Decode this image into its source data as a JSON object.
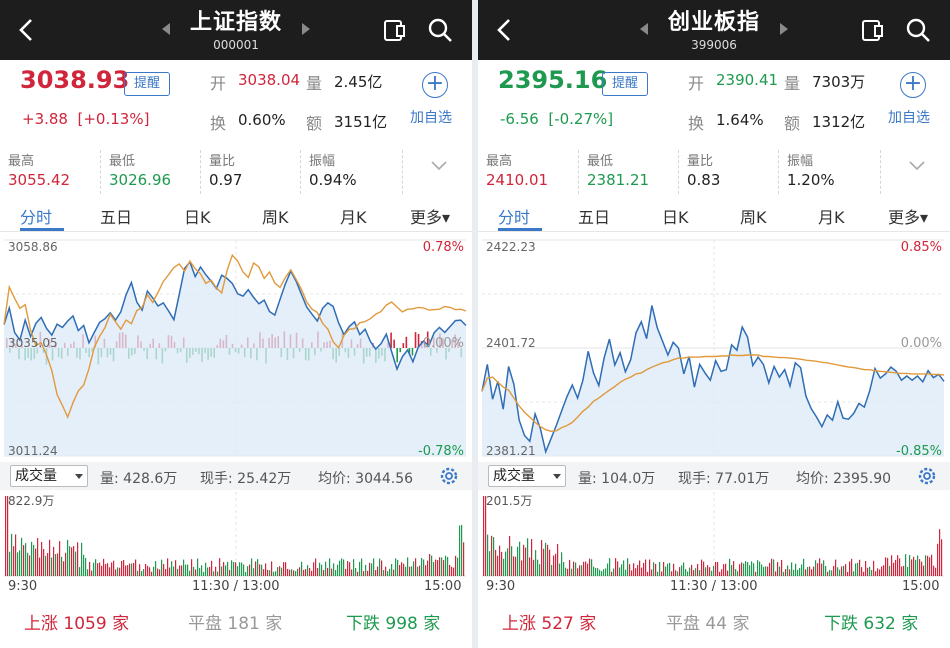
{
  "panels": [
    {
      "title": "上证指数",
      "code": "000001",
      "price": "3038.93",
      "remind_label": "提醒",
      "change": "+3.88",
      "change_pct": "[+0.13%]",
      "open_label": "开",
      "open": "3038.04",
      "vol_label": "量",
      "vol": "2.45亿",
      "turnover_label": "换",
      "turnover": "0.60%",
      "amount_label": "额",
      "amount": "3151亿",
      "add_label": "加自选",
      "stats": [
        {
          "label": "最高",
          "value": "3055.42"
        },
        {
          "label": "最低",
          "value": "3026.96"
        },
        {
          "label": "量比",
          "value": "0.97"
        },
        {
          "label": "振幅",
          "value": "0.94%"
        }
      ],
      "tabs": [
        "分时",
        "五日",
        "日K",
        "周K",
        "月K",
        "更多▾"
      ],
      "axis": {
        "top": "3058.86",
        "mid": "3035.05",
        "bottom": "3011.24",
        "top_pct": "0.78%",
        "mid_pct": "0.00%",
        "bottom_pct": "-0.78%"
      },
      "vol_selector": "成交量",
      "vol_info": {
        "qty": "量: 428.6万",
        "hand": "现手: 25.42万",
        "avg": "均价: 3044.56"
      },
      "vol_max": "822.9万",
      "times": [
        "9:30",
        "11:30 / 13:00",
        "15:00"
      ],
      "breadth": {
        "up": "上涨 1059 家",
        "flat": "平盘 181 家",
        "down": "下跌 998 家"
      },
      "chart_data": {
        "type": "line",
        "ylim": [
          3011.24,
          3058.86
        ],
        "series": [
          {
            "values": [
              3040.2,
              3043.9,
              3038.5,
              3036.8,
              3041.2,
              3037.6,
              3040.5,
              3041.8,
              3039.4,
              3037.9,
              3040.3,
              3039.6,
              3041.0,
              3042.1,
              3038.9,
              3040.0,
              3036.2,
              3038.5,
              3040.7,
              3041.5,
              3042.8,
              3041.2,
              3043.0,
              3046.8,
              3049.5,
              3045.2,
              3043.4,
              3047.6,
              3046.1,
              3044.3,
              3045.0,
              3043.2,
              3041.3,
              3046.8,
              3052.6,
              3054.0,
              3050.8,
              3052.9,
              3051.2,
              3049.8,
              3048.2,
              3051.1,
              3050.4,
              3049.3,
              3047.0,
              3046.5,
              3047.9,
              3046.2,
              3044.8,
              3045.6,
              3043.1,
              3042.3,
              3045.8,
              3049.2,
              3052.0,
              3049.8,
              3046.9,
              3044.1,
              3042.5,
              3041.0,
              3043.8,
              3045.0,
              3044.2,
              3040.6,
              3038.0,
              3039.8,
              3040.8,
              3038.0,
              3039.2,
              3036.5,
              3034.8,
              3036.0,
              3038.1,
              3034.2,
              3030.4,
              3033.1,
              3034.6,
              3032.0,
              3035.2,
              3036.6,
              3035.5,
              3038.4,
              3039.6,
              3038.5,
              3039.8,
              3041.1,
              3041.2,
              3040.0
            ]
          },
          {
            "values": [
              3040.2,
              3048.5,
              3046.0,
              3043.8,
              3044.6,
              3039.0,
              3035.6,
              3036.2,
              3033.5,
              3030.1,
              3024.8,
              3022.4,
              3019.8,
              3023.0,
              3025.6,
              3026.9,
              3030.5,
              3035.2,
              3037.6,
              3039.5,
              3042.5,
              3040.8,
              3039.2,
              3041.2,
              3040.4,
              3043.3,
              3044.0,
              3046.8,
              3045.1,
              3047.3,
              3049.7,
              3051.2,
              3052.8,
              3053.6,
              3052.0,
              3054.2,
              3052.5,
              3051.4,
              3049.3,
              3050.0,
              3048.3,
              3047.2,
              3052.1,
              3055.5,
              3054.2,
              3051.8,
              3050.6,
              3053.8,
              3052.9,
              3050.4,
              3051.8,
              3049.4,
              3048.4,
              3050.6,
              3052.3,
              3050.2,
              3048.0,
              3045.2,
              3043.6,
              3042.9,
              3040.5,
              3039.2,
              3036.4,
              3035.1,
              3037.8,
              3039.2,
              3039.3,
              3040.6,
              3040.9,
              3041.5,
              3042.5,
              3043.1,
              3044.5,
              3045.2,
              3044.1,
              3043.0,
              3043.6,
              3043.7,
              3044.0,
              3043.9,
              3043.4,
              3043.5,
              3043.6,
              3044.2,
              3044.0,
              3043.5,
              3043.6,
              3043.2
            ]
          }
        ]
      }
    },
    {
      "title": "创业板指",
      "code": "399006",
      "price": "2395.16",
      "remind_label": "提醒",
      "change": "-6.56",
      "change_pct": "[-0.27%]",
      "open_label": "开",
      "open": "2390.41",
      "vol_label": "量",
      "vol": "7303万",
      "turnover_label": "换",
      "turnover": "1.64%",
      "amount_label": "额",
      "amount": "1312亿",
      "add_label": "加自选",
      "stats": [
        {
          "label": "最高",
          "value": "2410.01"
        },
        {
          "label": "最低",
          "value": "2381.21"
        },
        {
          "label": "量比",
          "value": "0.83"
        },
        {
          "label": "振幅",
          "value": "1.20%"
        }
      ],
      "tabs": [
        "分时",
        "五日",
        "日K",
        "周K",
        "月K",
        "更多▾"
      ],
      "axis": {
        "top": "2422.23",
        "mid": "2401.72",
        "bottom": "2381.21",
        "top_pct": "0.85%",
        "mid_pct": "0.00%",
        "bottom_pct": "-0.85%"
      },
      "vol_selector": "成交量",
      "vol_info": {
        "qty": "量: 104.0万",
        "hand": "现手: 77.01万",
        "avg": "均价: 2395.90"
      },
      "vol_max": "201.5万",
      "times": [
        "9:30",
        "11:30 / 13:00",
        "15:00"
      ],
      "breadth": {
        "up": "上涨 527 家",
        "flat": "平盘 44 家",
        "down": "下跌 632 家"
      },
      "chart_data": {
        "type": "line",
        "ylim": [
          2381.21,
          2422.23
        ],
        "series": [
          {
            "values": [
              2393.5,
              2398.6,
              2392.0,
              2395.4,
              2390.1,
              2398.2,
              2394.8,
              2388.0,
              2385.1,
              2384.0,
              2389.2,
              2386.4,
              2382.0,
              2384.5,
              2387.0,
              2389.8,
              2392.5,
              2394.7,
              2392.2,
              2395.6,
              2401.1,
              2397.0,
              2394.6,
              2399.8,
              2403.4,
              2398.5,
              2400.8,
              2397.2,
              2399.5,
              2404.6,
              2406.7,
              2403.5,
              2409.8,
              2405.6,
              2403.0,
              2400.4,
              2402.8,
              2401.7,
              2396.8,
              2400.1,
              2394.3,
              2398.6,
              2397.0,
              2395.6,
              2399.3,
              2397.3,
              2397.6,
              2402.3,
              2401.3,
              2405.7,
              2403.8,
              2398.4,
              2400.0,
              2398.6,
              2395.1,
              2398.2,
              2396.2,
              2397.6,
              2394.5,
              2398.9,
              2398.0,
              2392.6,
              2390.2,
              2388.6,
              2386.8,
              2389.0,
              2388.0,
              2391.5,
              2388.4,
              2388.2,
              2389.3,
              2391.2,
              2390.5,
              2393.6,
              2397.8,
              2396.0,
              2396.8,
              2398.1,
              2397.3,
              2395.6,
              2396.4,
              2395.6,
              2396.4,
              2395.3,
              2397.4,
              2396.1,
              2396.7,
              2395.4
            ]
          },
          {
            "values": [
              2393.5,
              2396.0,
              2396.2,
              2395.2,
              2394.3,
              2393.7,
              2392.2,
              2390.7,
              2389.5,
              2388.6,
              2387.6,
              2386.8,
              2386.2,
              2385.9,
              2386.0,
              2386.6,
              2387.0,
              2387.6,
              2388.6,
              2389.7,
              2390.5,
              2391.6,
              2392.2,
              2393.0,
              2393.7,
              2394.4,
              2395.2,
              2395.8,
              2396.2,
              2396.8,
              2397.0,
              2397.6,
              2398.1,
              2398.5,
              2398.9,
              2399.1,
              2399.5,
              2399.8,
              2399.8,
              2400.0,
              2400.0,
              2400.0,
              2400.1,
              2400.1,
              2400.1,
              2400.2,
              2400.2,
              2400.4,
              2400.3,
              2400.3,
              2400.4,
              2400.4,
              2400.4,
              2400.1,
              2400.1,
              2400.0,
              2399.9,
              2399.9,
              2399.8,
              2399.7,
              2399.6,
              2399.4,
              2399.3,
              2399.2,
              2399.0,
              2398.9,
              2398.7,
              2398.5,
              2398.3,
              2398.1,
              2398.0,
              2397.8,
              2397.6,
              2397.6,
              2397.4,
              2397.3,
              2397.2,
              2397.1,
              2397.0,
              2396.9,
              2396.9,
              2396.8,
              2396.8,
              2396.8,
              2396.8,
              2396.7,
              2396.7,
              2396.6
            ]
          }
        ]
      }
    }
  ],
  "colors": {
    "price_up": "#d0253a",
    "price_down": "#1e9a50",
    "accent": "#3b78c8",
    "avg_line": "#e09a3c",
    "line": "#2f6db5"
  },
  "icons": [
    "back-arrow-icon",
    "prev-triangle-icon",
    "next-triangle-icon",
    "share-icon",
    "search-icon",
    "plus-circle-icon",
    "chevron-down-icon",
    "gear-icon"
  ]
}
